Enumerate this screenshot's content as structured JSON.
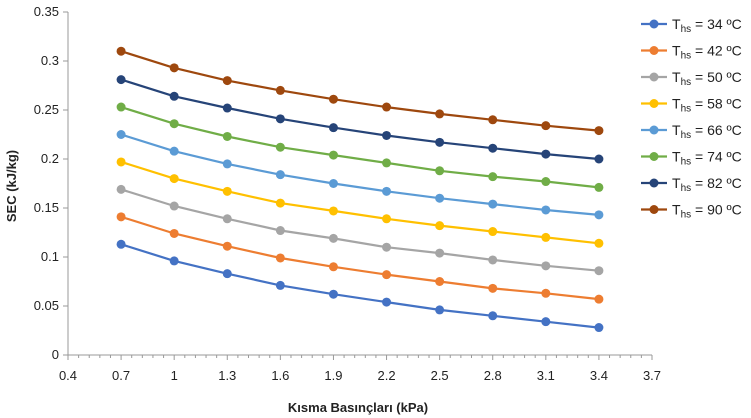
{
  "chart_data": {
    "type": "line",
    "xlabel": "Kısma Basınçları (kPa)",
    "ylabel": "SEC (kJ/kg)",
    "xlim": [
      0.4,
      3.7
    ],
    "ylim": [
      0,
      0.35
    ],
    "xticks": [
      "0.4",
      "0.7",
      "1",
      "1.3",
      "1.6",
      "1.9",
      "2.2",
      "2.5",
      "2.8",
      "3.1",
      "3.4",
      "3.7"
    ],
    "yticks": [
      "0",
      "0.05",
      "0.1",
      "0.15",
      "0.2",
      "0.25",
      "0.3",
      "0.35"
    ],
    "grid": false,
    "legend_position": "right",
    "x": [
      0.7,
      1.0,
      1.3,
      1.6,
      1.9,
      2.2,
      2.5,
      2.8,
      3.1,
      3.4
    ],
    "series": [
      {
        "name": "T",
        "subscript": "hs",
        "suffix": " = 34 ºC",
        "color": "#4472C4",
        "values": [
          0.113,
          0.096,
          0.083,
          0.071,
          0.062,
          0.054,
          0.046,
          0.04,
          0.034,
          0.028
        ]
      },
      {
        "name": "T",
        "subscript": "hs",
        "suffix": " = 42 ºC",
        "color": "#ED7D31",
        "values": [
          0.141,
          0.124,
          0.111,
          0.099,
          0.09,
          0.082,
          0.075,
          0.068,
          0.063,
          0.057
        ]
      },
      {
        "name": "T",
        "subscript": "hs",
        "suffix": " = 50 ºC",
        "color": "#A5A5A5",
        "values": [
          0.169,
          0.152,
          0.139,
          0.127,
          0.119,
          0.11,
          0.104,
          0.097,
          0.091,
          0.086
        ]
      },
      {
        "name": "T",
        "subscript": "hs",
        "suffix": " = 58 ºC",
        "color": "#FFC000",
        "values": [
          0.197,
          0.18,
          0.167,
          0.155,
          0.147,
          0.139,
          0.132,
          0.126,
          0.12,
          0.114
        ]
      },
      {
        "name": "T",
        "subscript": "hs",
        "suffix": " = 66 ºC",
        "color": "#5B9BD5",
        "values": [
          0.225,
          0.208,
          0.195,
          0.184,
          0.175,
          0.167,
          0.16,
          0.154,
          0.148,
          0.143
        ]
      },
      {
        "name": "T",
        "subscript": "hs",
        "suffix": " = 74 ºC",
        "color": "#70AD47",
        "values": [
          0.253,
          0.236,
          0.223,
          0.212,
          0.204,
          0.196,
          0.188,
          0.182,
          0.177,
          0.171
        ]
      },
      {
        "name": "T",
        "subscript": "hs",
        "suffix": " = 82 ºC",
        "color": "#264478",
        "values": [
          0.281,
          0.264,
          0.252,
          0.241,
          0.232,
          0.224,
          0.217,
          0.211,
          0.205,
          0.2
        ]
      },
      {
        "name": "T",
        "subscript": "hs",
        "suffix": " = 90 ºC",
        "color": "#9E480E",
        "values": [
          0.31,
          0.293,
          0.28,
          0.27,
          0.261,
          0.253,
          0.246,
          0.24,
          0.234,
          0.229
        ]
      }
    ]
  }
}
